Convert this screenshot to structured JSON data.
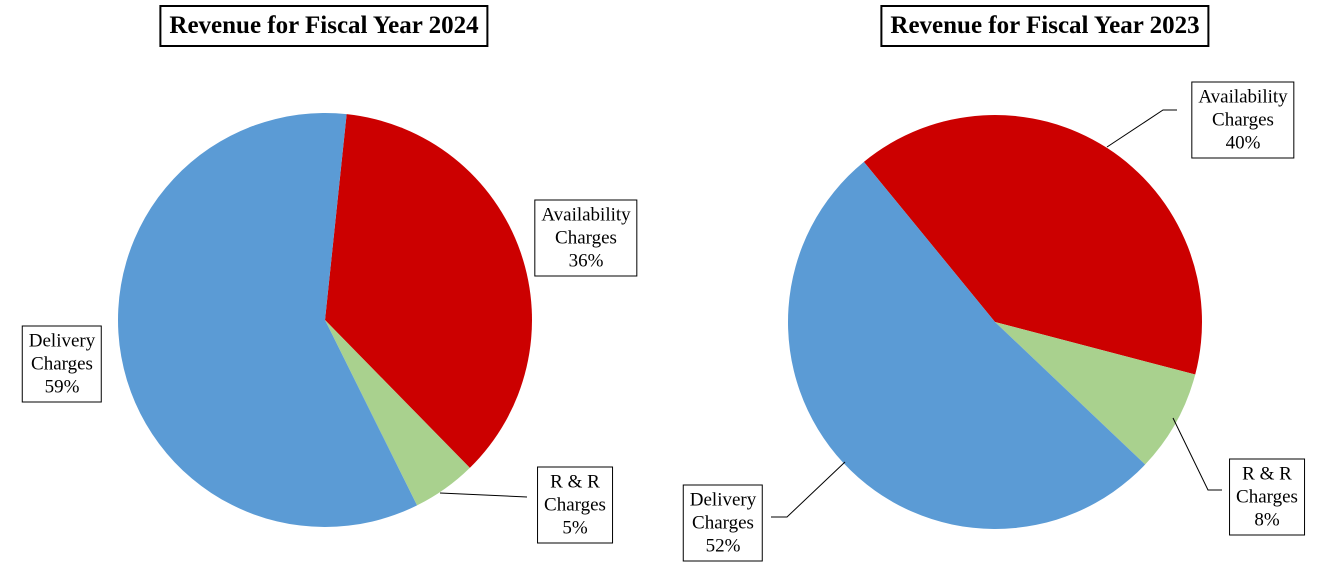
{
  "chart_data": [
    {
      "type": "pie",
      "title": "Revenue for Fiscal Year 2024",
      "categories": [
        "Availability Charges",
        "R & R Charges",
        "Delivery Charges"
      ],
      "values": [
        36,
        5,
        59
      ],
      "value_labels": [
        "36%",
        "5%",
        "59%"
      ],
      "colors": [
        "#cc0000",
        "#a9d18e",
        "#5b9bd5"
      ]
    },
    {
      "type": "pie",
      "title": "Revenue for Fiscal Year 2023",
      "categories": [
        "Availability Charges",
        "R & R Charges",
        "Delivery Charges"
      ],
      "values": [
        40,
        8,
        52
      ],
      "value_labels": [
        "40%",
        "8%",
        "52%"
      ],
      "colors": [
        "#cc0000",
        "#a9d18e",
        "#5b9bd5"
      ]
    }
  ]
}
